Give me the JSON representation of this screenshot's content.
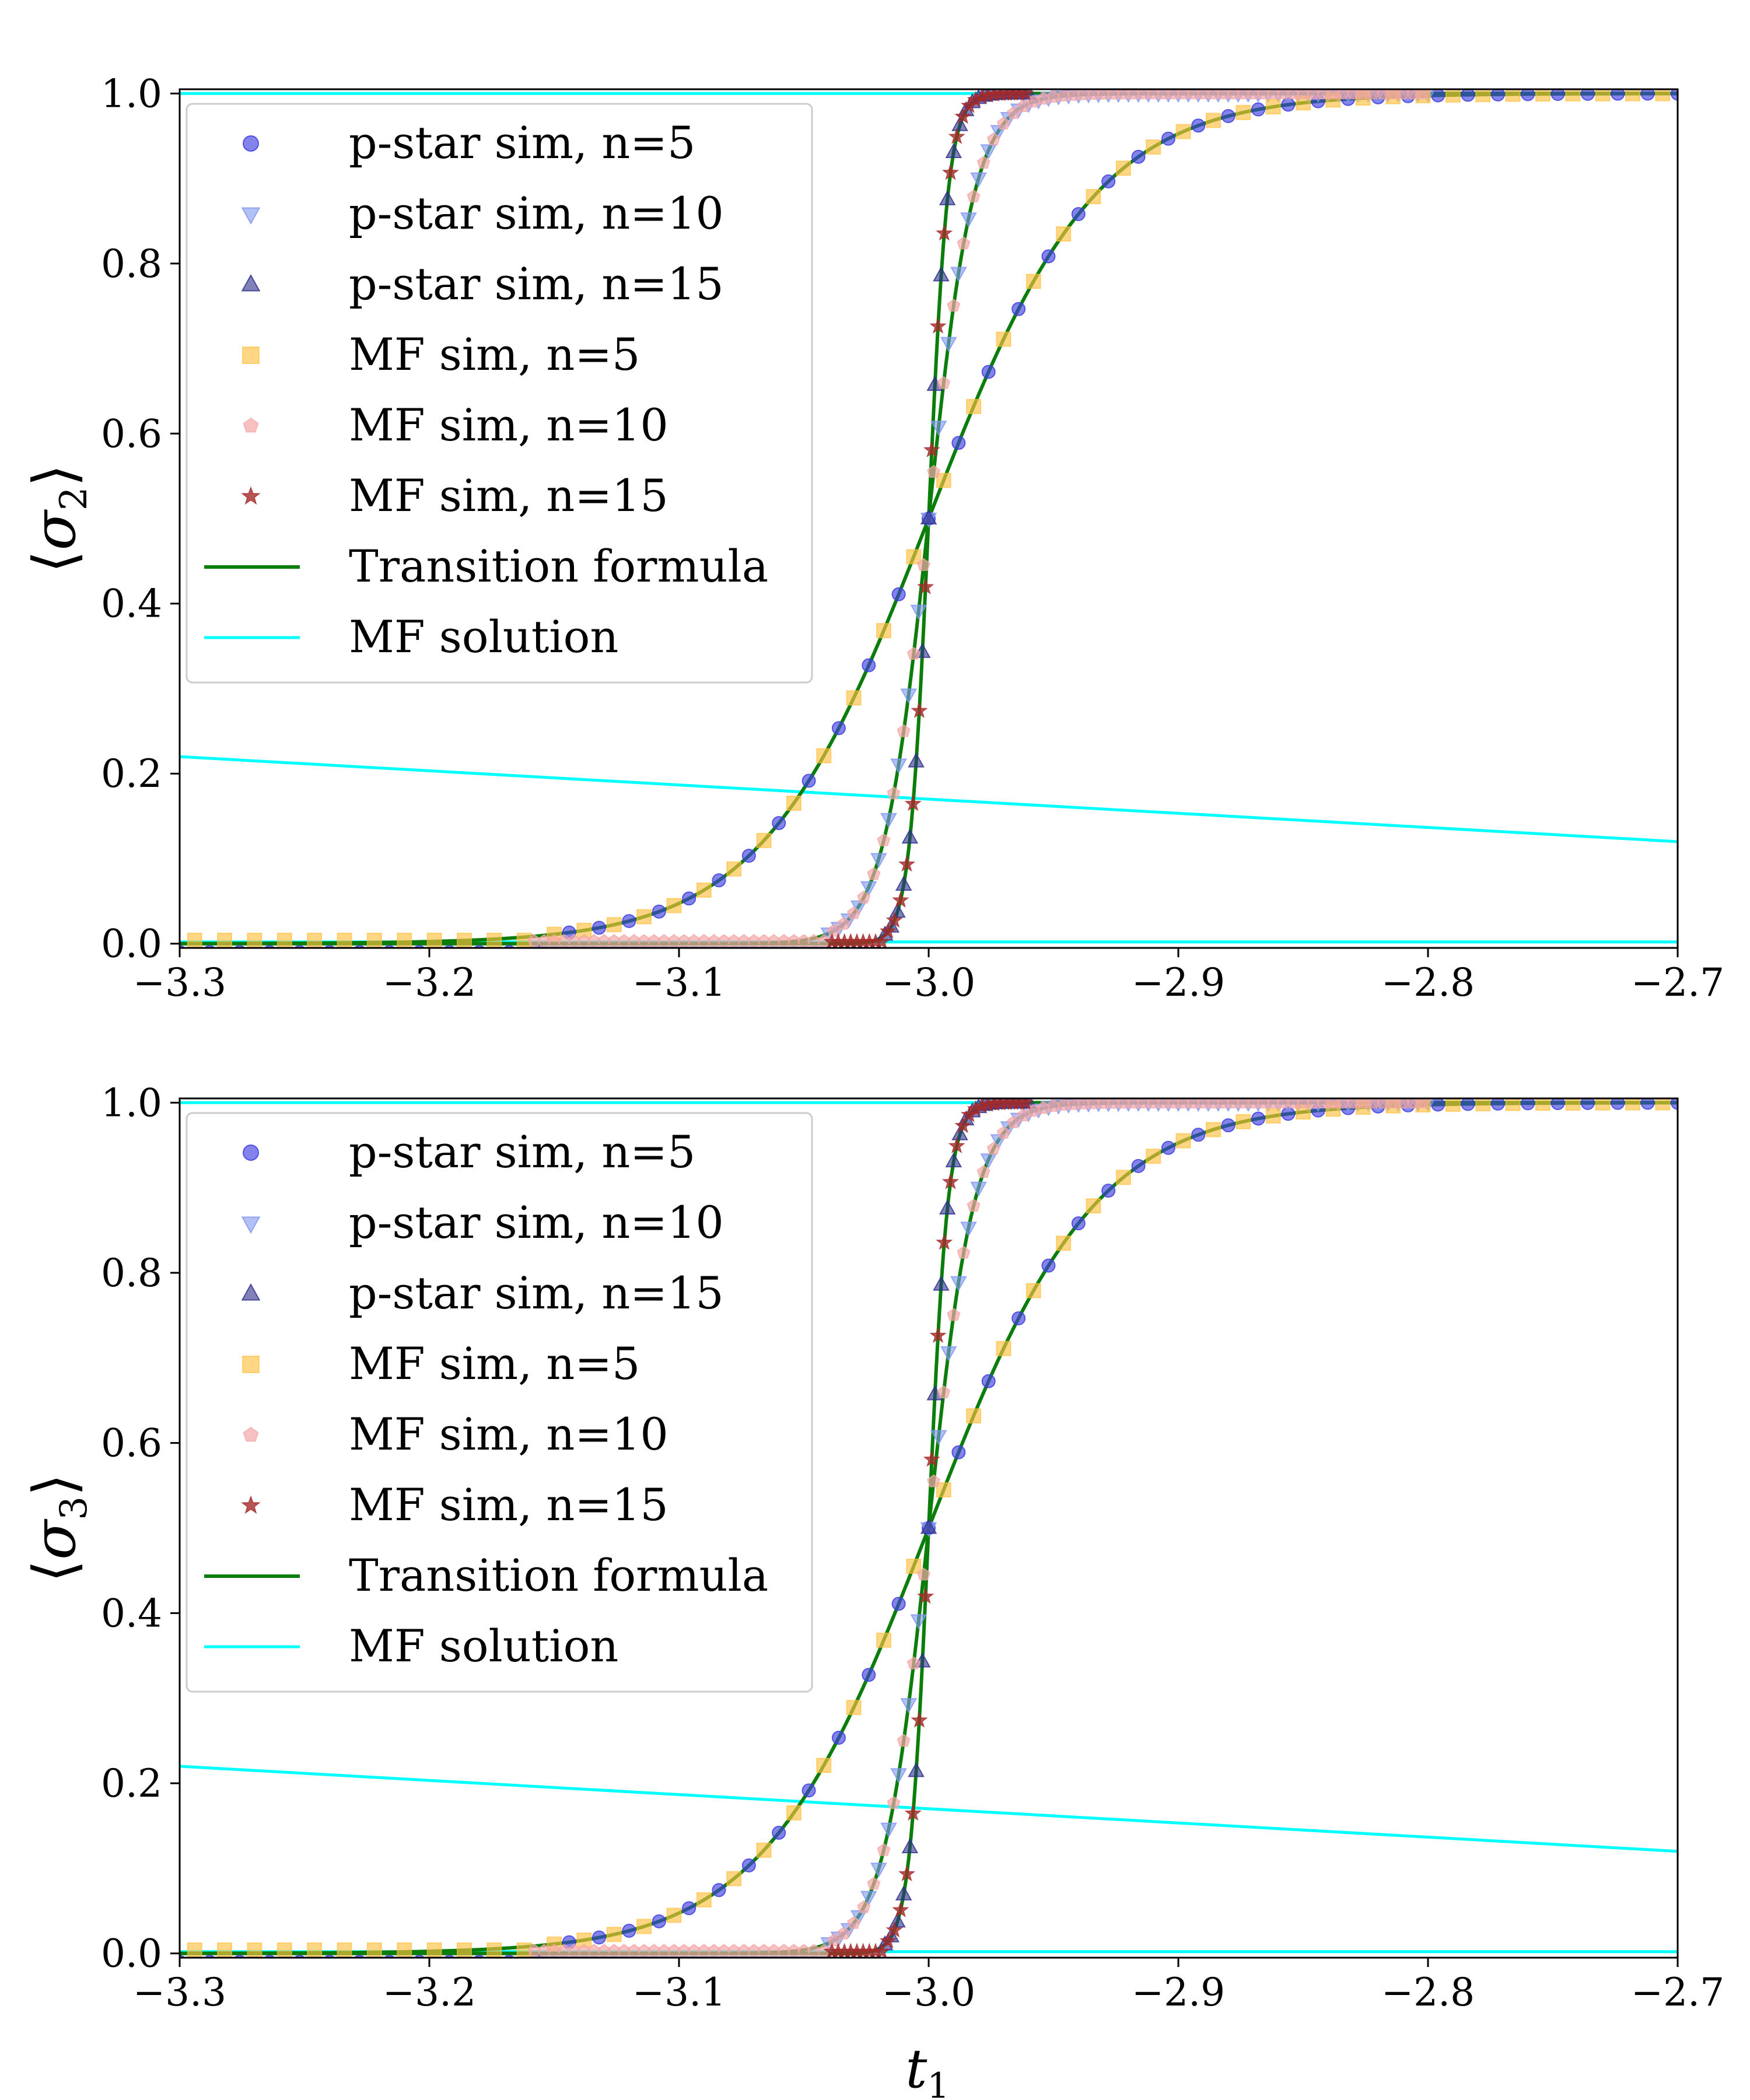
{
  "figure": {
    "xlabel_main": "t",
    "xlabel_sub": "1"
  },
  "legend_entries": [
    {
      "label": "p-star sim, n=5",
      "marker": "circle",
      "color": "#4040e0"
    },
    {
      "label": "p-star sim, n=10",
      "marker": "triangle-down",
      "color": "#7f96f0"
    },
    {
      "label": "p-star sim, n=15",
      "marker": "triangle-up",
      "color": "#2e2e8c"
    },
    {
      "label": "MF sim, n=5",
      "marker": "square",
      "color": "#ffc040"
    },
    {
      "label": "MF sim, n=10",
      "marker": "pentagon",
      "color": "#f4a6a6"
    },
    {
      "label": "MF sim, n=15",
      "marker": "star",
      "color": "#a52a2a"
    },
    {
      "label": "Transition formula",
      "marker": "line",
      "color": "#0a7d0a"
    },
    {
      "label": "MF solution",
      "marker": "line",
      "color": "#00ffff"
    }
  ],
  "chart_data": [
    {
      "type": "line",
      "ylabel": "⟨σ2⟩",
      "ylabel_main": "σ",
      "ylabel_sub": "2",
      "xlim": [
        -3.3,
        -2.7
      ],
      "ylim": [
        -0.005,
        1.005
      ],
      "xticks": [
        -3.3,
        -3.2,
        -3.1,
        -3.0,
        -2.9,
        -2.8,
        -2.7
      ],
      "xtick_labels": [
        "−3.3",
        "−3.2",
        "−3.1",
        "−3.0",
        "−2.9",
        "−2.8",
        "−2.7"
      ],
      "yticks": [
        0.0,
        0.2,
        0.4,
        0.6,
        0.8,
        1.0
      ],
      "ytick_labels": [
        "0.0",
        "0.2",
        "0.4",
        "0.6",
        "0.8",
        "1.0"
      ],
      "legend_position": "upper-left",
      "transition_curves": [
        {
          "n": 5,
          "center": -3.0,
          "steepness": 30,
          "x_range": [
            -3.3,
            -2.7
          ],
          "marker_step": 0.012
        },
        {
          "n": 10,
          "center": -3.0,
          "steepness": 110,
          "x_range": [
            -3.16,
            -2.8
          ],
          "marker_step": 0.004
        },
        {
          "n": 15,
          "center": -3.0,
          "steepness": 260,
          "x_range": [
            -3.04,
            -2.96
          ],
          "marker_step": 0.0025
        }
      ],
      "mf_solution_lines": [
        {
          "x": [
            -3.3,
            -2.7
          ],
          "y": [
            1.0,
            1.0
          ]
        },
        {
          "x": [
            -3.3,
            -2.7
          ],
          "y": [
            0.22,
            0.12
          ]
        },
        {
          "x": [
            -3.3,
            -2.7
          ],
          "y": [
            0.002,
            0.002
          ]
        }
      ]
    },
    {
      "type": "line",
      "ylabel": "⟨σ3⟩",
      "ylabel_main": "σ",
      "ylabel_sub": "3",
      "xlim": [
        -3.3,
        -2.7
      ],
      "ylim": [
        -0.005,
        1.005
      ],
      "xticks": [
        -3.3,
        -3.2,
        -3.1,
        -3.0,
        -2.9,
        -2.8,
        -2.7
      ],
      "xtick_labels": [
        "−3.3",
        "−3.2",
        "−3.1",
        "−3.0",
        "−2.9",
        "−2.8",
        "−2.7"
      ],
      "yticks": [
        0.0,
        0.2,
        0.4,
        0.6,
        0.8,
        1.0
      ],
      "ytick_labels": [
        "0.0",
        "0.2",
        "0.4",
        "0.6",
        "0.8",
        "1.0"
      ],
      "legend_position": "upper-left",
      "transition_curves": [
        {
          "n": 5,
          "center": -3.0,
          "steepness": 30,
          "x_range": [
            -3.3,
            -2.7
          ],
          "marker_step": 0.012
        },
        {
          "n": 10,
          "center": -3.0,
          "steepness": 110,
          "x_range": [
            -3.16,
            -2.8
          ],
          "marker_step": 0.004
        },
        {
          "n": 15,
          "center": -3.0,
          "steepness": 260,
          "x_range": [
            -3.04,
            -2.96
          ],
          "marker_step": 0.0025
        }
      ],
      "mf_solution_lines": [
        {
          "x": [
            -3.3,
            -2.7
          ],
          "y": [
            1.0,
            1.0
          ]
        },
        {
          "x": [
            -3.3,
            -2.7
          ],
          "y": [
            0.22,
            0.12
          ]
        },
        {
          "x": [
            -3.3,
            -2.7
          ],
          "y": [
            0.002,
            0.002
          ]
        }
      ]
    }
  ]
}
